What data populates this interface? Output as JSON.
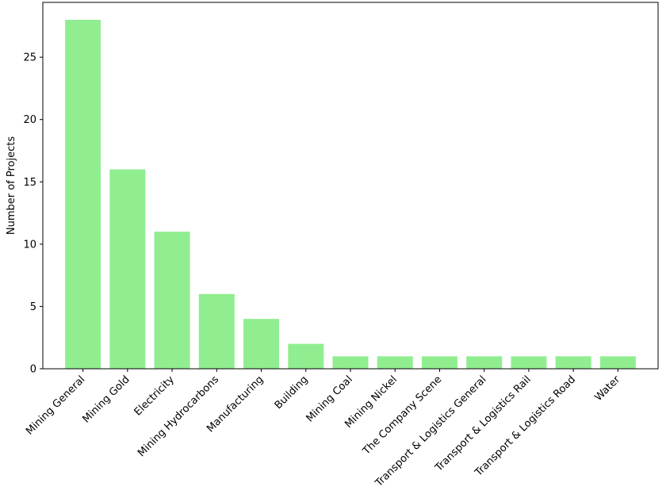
{
  "chart_data": {
    "type": "bar",
    "title": "",
    "xlabel": "",
    "ylabel": "Number of Projects",
    "categories": [
      "Mining General",
      "Mining Gold",
      "Electricity",
      "Mining Hydrocarbons",
      "Manufacturing",
      "Building",
      "Mining Coal",
      "Mining Nickel",
      "The Company Scene",
      "Transport & Logistics General",
      "Transport & Logistics Rail",
      "Transport & Logistics Road",
      "Water"
    ],
    "values": [
      28,
      16,
      11,
      6,
      4,
      2,
      1,
      1,
      1,
      1,
      1,
      1,
      1
    ],
    "ylim": [
      0,
      29.4
    ],
    "yticks": [
      0,
      5,
      10,
      15,
      20,
      25
    ],
    "grid": false,
    "bar_color": "#90ee90"
  }
}
